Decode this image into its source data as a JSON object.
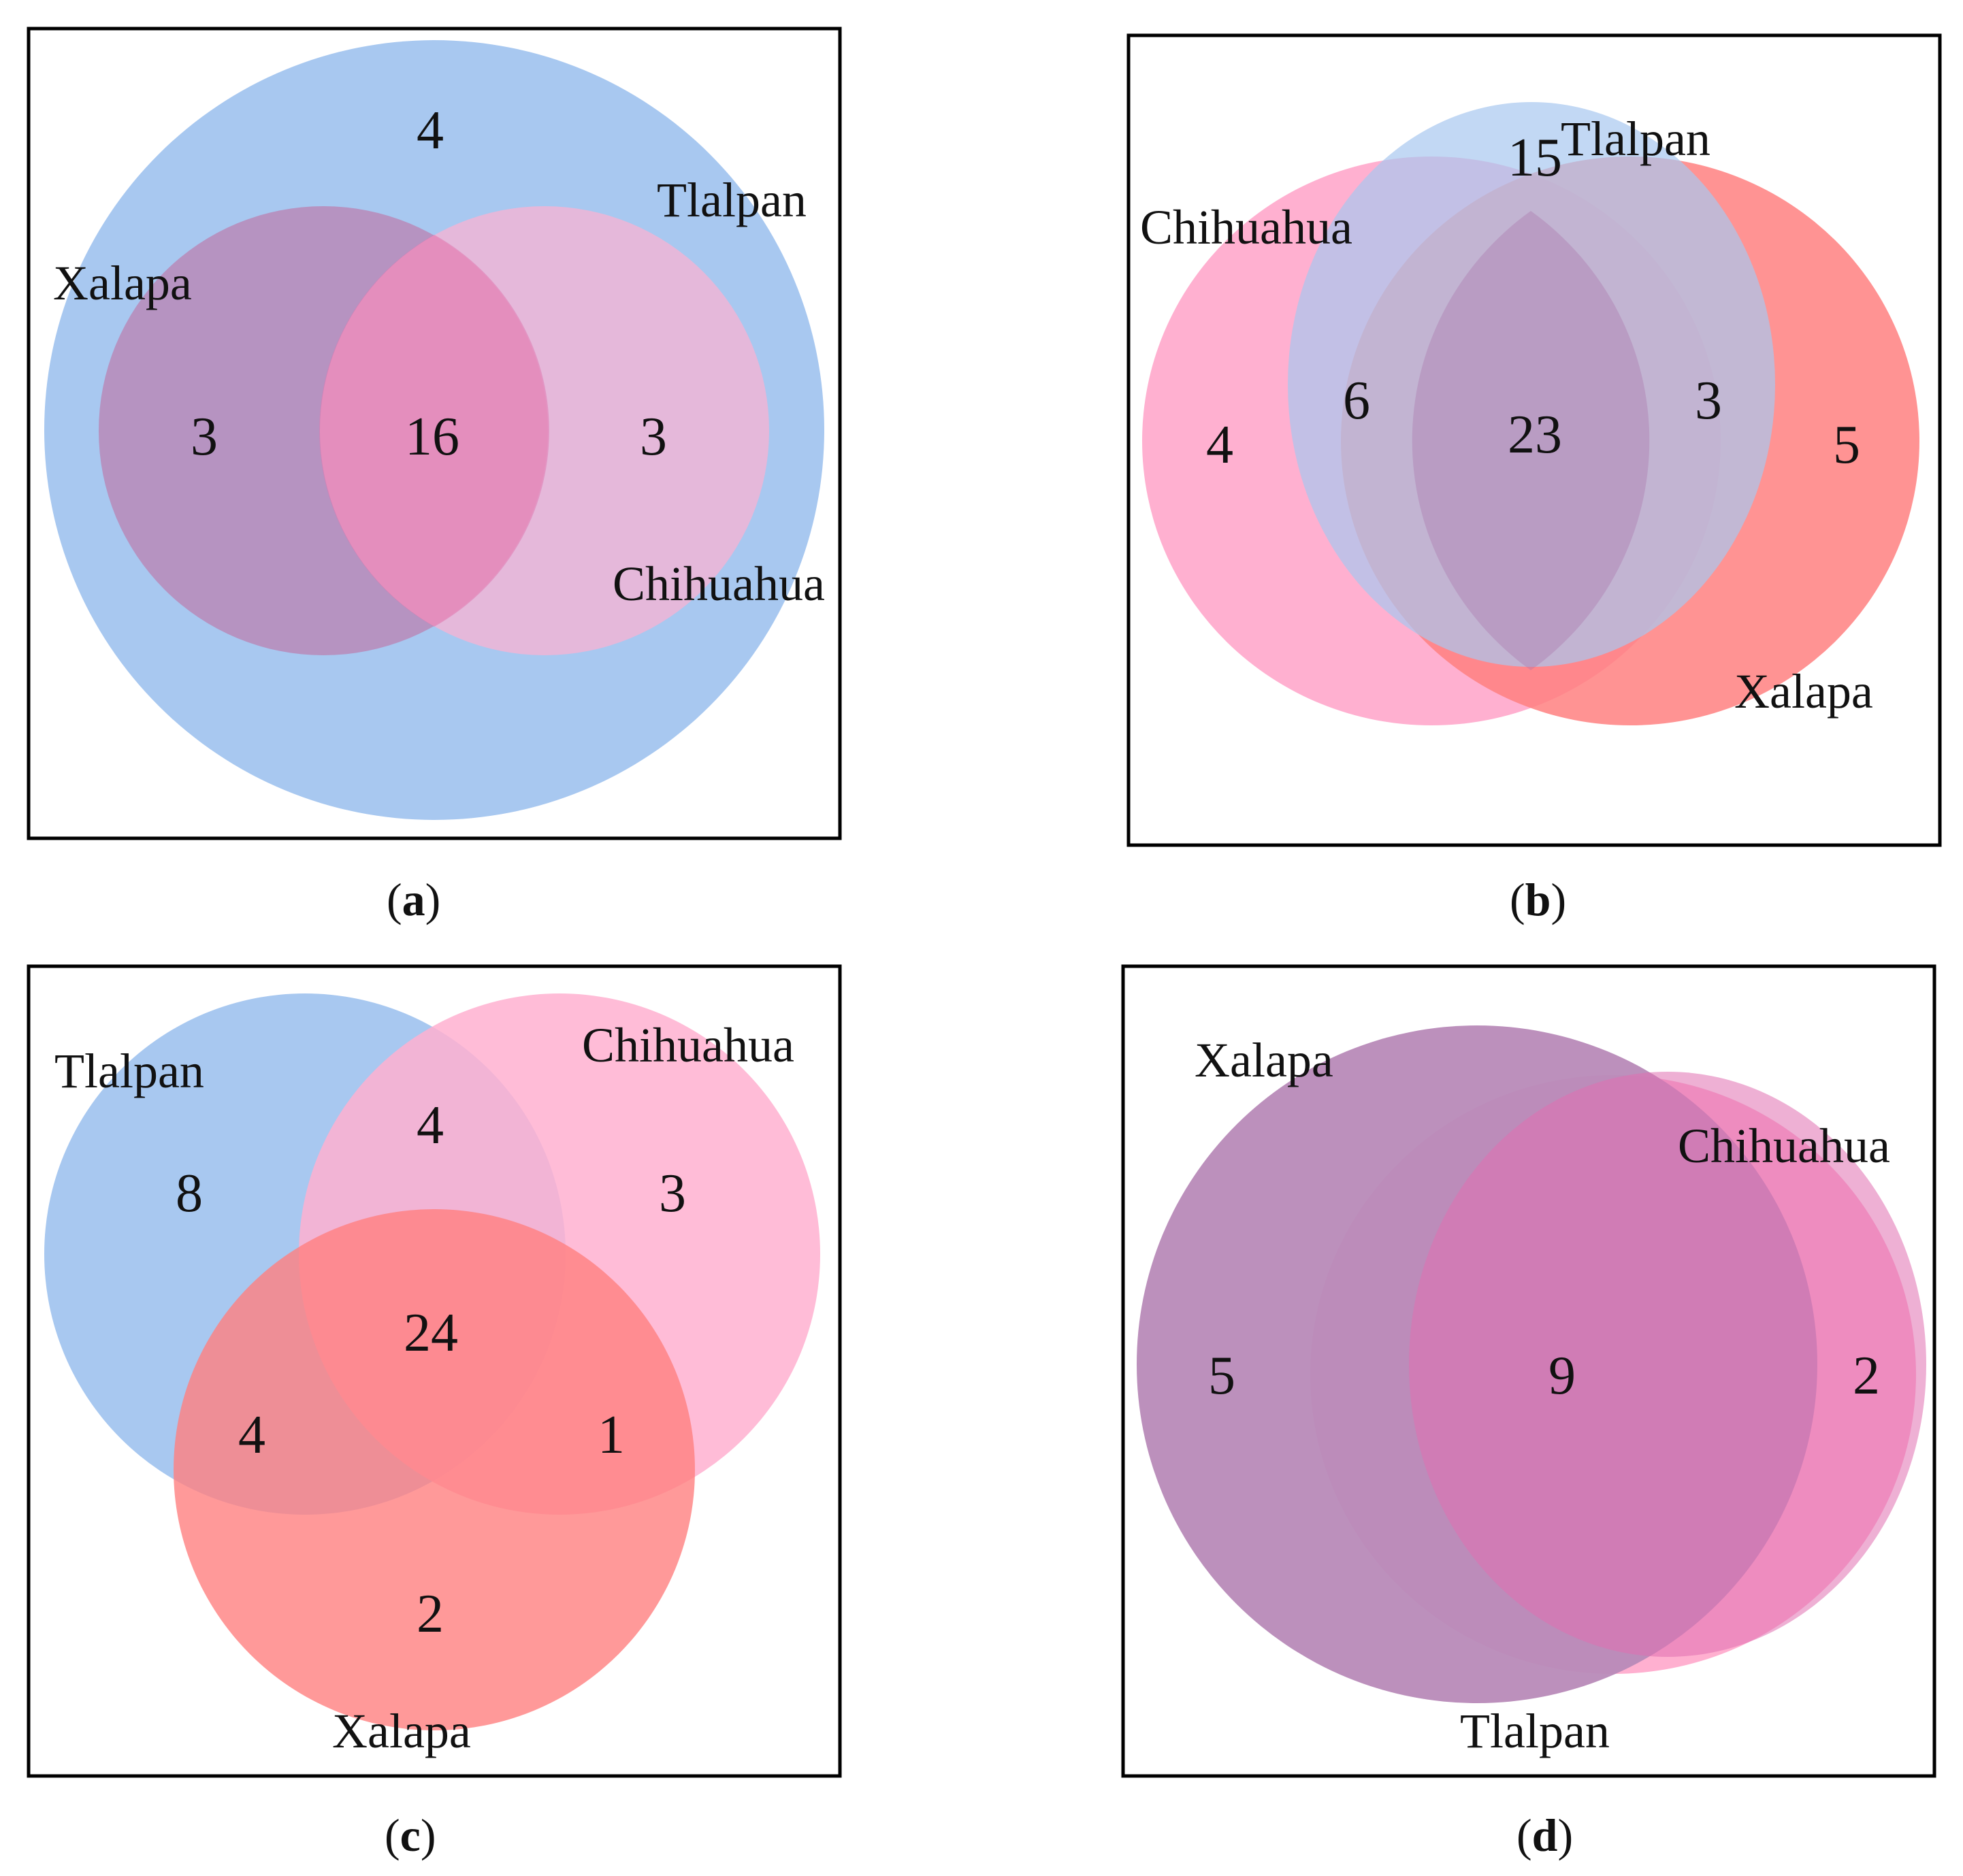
{
  "colors": {
    "blue": "#a8c8f0",
    "pink": "#ffb0d0",
    "red": "#ff8080",
    "purple": "#b88ab8",
    "frame": "#000000"
  },
  "panels": [
    {
      "id": "a",
      "caption": "a",
      "sets": [
        "Tlalpan",
        "Xalapa",
        "Chihuahua"
      ],
      "counts": [
        "4",
        "3",
        "16",
        "3"
      ],
      "description_regions": [
        "Tlalpan only",
        "Xalapa ∩ Tlalpan",
        "all three",
        "Chihuahua ∩ Tlalpan"
      ]
    },
    {
      "id": "b",
      "caption": "b",
      "sets": [
        "Chihuahua",
        "Tlalpan",
        "Xalapa"
      ],
      "counts": [
        "4",
        "15",
        "6",
        "23",
        "3",
        "5"
      ],
      "description_regions": [
        "Chihuahua only",
        "Tlalpan only",
        "Chihuahua ∩ Tlalpan",
        "all three",
        "Tlalpan ∩ Xalapa",
        "Xalapa only"
      ]
    },
    {
      "id": "c",
      "caption": "c",
      "sets": [
        "Tlalpan",
        "Chihuahua",
        "Xalapa"
      ],
      "counts": [
        "8",
        "4",
        "3",
        "24",
        "4",
        "1",
        "2"
      ],
      "description_regions": [
        "Tlalpan only",
        "Tlalpan ∩ Chihuahua",
        "Chihuahua only",
        "all three",
        "Tlalpan ∩ Xalapa",
        "Chihuahua ∩ Xalapa",
        "Xalapa only"
      ]
    },
    {
      "id": "d",
      "caption": "d",
      "sets": [
        "Xalapa",
        "Chihuahua",
        "Tlalpan"
      ],
      "counts": [
        "5",
        "9",
        "2"
      ],
      "description_regions": [
        "Xalapa/Tlalpan only",
        "all three",
        "Chihuahua only"
      ]
    }
  ]
}
